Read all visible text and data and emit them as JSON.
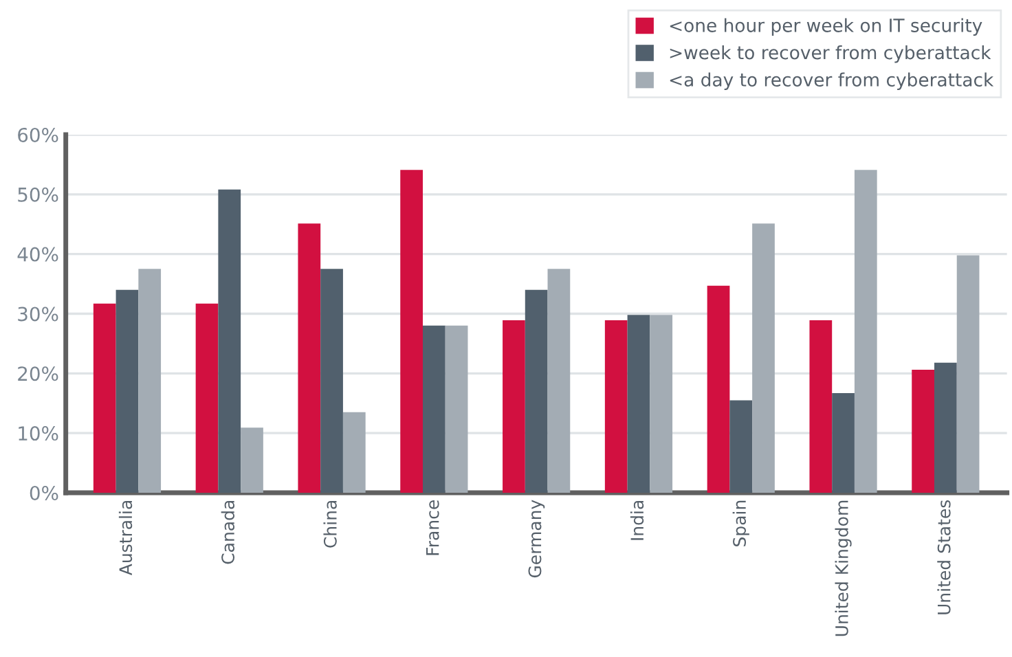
{
  "chart_data": {
    "type": "bar",
    "categories": [
      "Australia",
      "Canada",
      "China",
      "France",
      "Germany",
      "India",
      "Spain",
      "United Kingdom",
      "United States"
    ],
    "series": [
      {
        "name": "<one hour per week on IT security",
        "color": "#d21040",
        "values": [
          31.7,
          31.7,
          45.1,
          54.1,
          28.9,
          28.9,
          34.7,
          28.9,
          20.6
        ]
      },
      {
        "name": ">week to recover from cyberattack",
        "color": "#51606d",
        "values": [
          34,
          50.8,
          37.5,
          28,
          34,
          29.8,
          15.5,
          16.7,
          21.8
        ]
      },
      {
        "name": "<a day to recover from cyberattack",
        "color": "#a3acb4",
        "values": [
          37.5,
          10.9,
          13.5,
          28,
          37.5,
          29.8,
          45.1,
          54.1,
          39.8
        ]
      }
    ],
    "ylim": [
      0,
      60
    ],
    "yticks": [
      {
        "value": 0,
        "label": "0%"
      },
      {
        "value": 10,
        "label": "10%"
      },
      {
        "value": 20,
        "label": "20%"
      },
      {
        "value": 30,
        "label": "30%"
      },
      {
        "value": 40,
        "label": "40%"
      },
      {
        "value": 50,
        "label": "50%"
      },
      {
        "value": 60,
        "label": "60%"
      }
    ],
    "grid": "y",
    "legend": "top right"
  }
}
